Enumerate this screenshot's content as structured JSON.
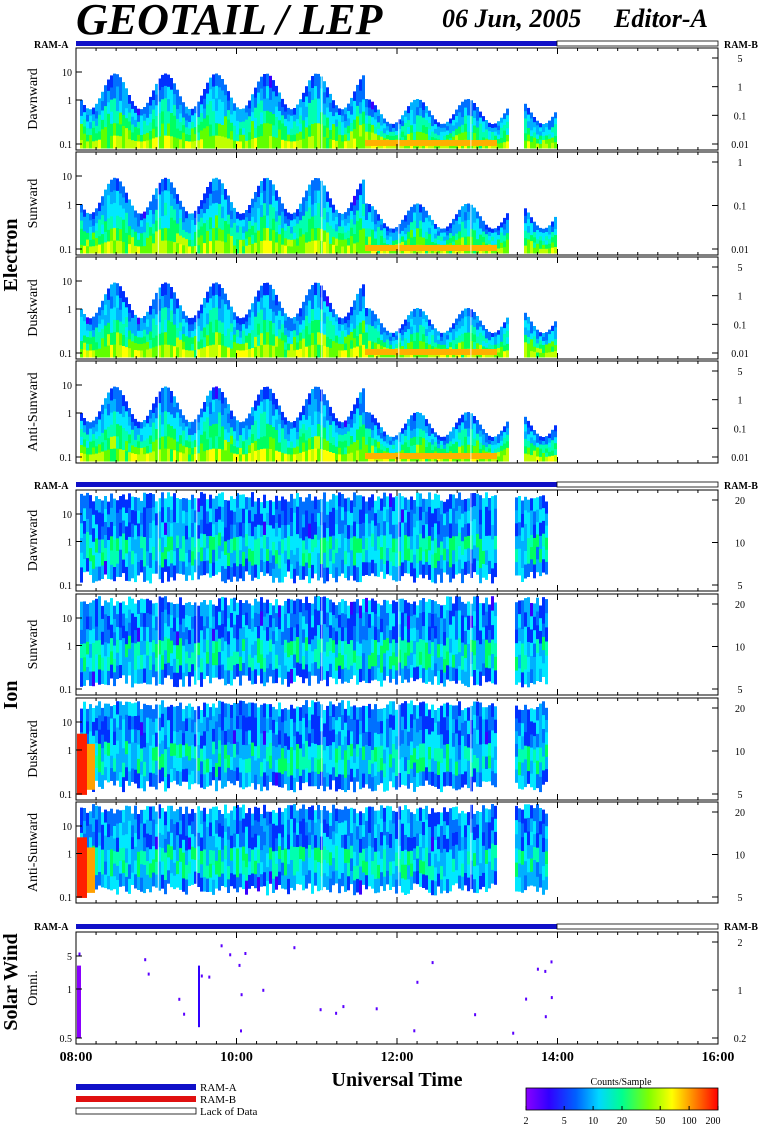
{
  "header": {
    "title": "GEOTAIL / LEP",
    "date": "06 Jun, 2005",
    "editor": "Editor-A"
  },
  "ram_labels": {
    "left": "RAM-A",
    "right": "RAM-B"
  },
  "groups": [
    {
      "id": "electron",
      "label": "Electron"
    },
    {
      "id": "ion",
      "label": "Ion"
    },
    {
      "id": "solar",
      "label": "Solar Wind"
    }
  ],
  "chart_data": {
    "type": "heatmap",
    "xlabel": "Universal Time",
    "xticks": [
      "08:00",
      "10:00",
      "12:00",
      "14:00",
      "16:00"
    ],
    "xlim": [
      "08:00",
      "16:00"
    ],
    "data_coverage": {
      "start": "08:00",
      "end": "14:00"
    },
    "panels": [
      {
        "group": "Electron",
        "label": "Dawnward",
        "left_ticks": [
          "10",
          "1",
          "0.1"
        ],
        "right_ticks": [
          "5",
          "1",
          "0.1",
          "0.01"
        ],
        "scale": "log"
      },
      {
        "group": "Electron",
        "label": "Sunward",
        "left_ticks": [
          "10",
          "1",
          "0.1"
        ],
        "right_ticks": [
          "1",
          "0.1",
          "0.01"
        ],
        "scale": "log"
      },
      {
        "group": "Electron",
        "label": "Duskward",
        "left_ticks": [
          "10",
          "1",
          "0.1"
        ],
        "right_ticks": [
          "5",
          "1",
          "0.1",
          "0.01"
        ],
        "scale": "log"
      },
      {
        "group": "Electron",
        "label": "Anti-Sunward",
        "left_ticks": [
          "10",
          "1",
          "0.1"
        ],
        "right_ticks": [
          "5",
          "1",
          "0.1",
          "0.01"
        ],
        "scale": "log"
      },
      {
        "group": "Ion",
        "label": "Dawnward",
        "left_ticks": [
          "10",
          "1",
          "0.1"
        ],
        "right_ticks": [
          "20",
          "10",
          "5"
        ],
        "scale": "log"
      },
      {
        "group": "Ion",
        "label": "Sunward",
        "left_ticks": [
          "10",
          "1",
          "0.1"
        ],
        "right_ticks": [
          "20",
          "10",
          "5"
        ],
        "scale": "log"
      },
      {
        "group": "Ion",
        "label": "Duskward",
        "left_ticks": [
          "10",
          "1",
          "0.1"
        ],
        "right_ticks": [
          "20",
          "10",
          "5"
        ],
        "scale": "log"
      },
      {
        "group": "Ion",
        "label": "Anti-Sunward",
        "left_ticks": [
          "10",
          "1",
          "0.1"
        ],
        "right_ticks": [
          "20",
          "10",
          "5"
        ],
        "scale": "log"
      },
      {
        "group": "Solar Wind",
        "label": "Omni.",
        "left_ticks": [
          "5",
          "1",
          "0.5"
        ],
        "right_ticks": [
          "2",
          "1",
          "0.2"
        ],
        "scale": "log"
      }
    ],
    "legend": [
      {
        "label": "RAM-A",
        "color": "#1010c8"
      },
      {
        "label": "RAM-B",
        "color": "#e01010"
      },
      {
        "label": "Lack of Data",
        "color": "#ffffff"
      }
    ],
    "colorbar": {
      "title": "Counts/Sample",
      "ticks": [
        "2",
        "5",
        "10",
        "20",
        "50",
        "100",
        "200"
      ],
      "scale": "log",
      "range": [
        2,
        200
      ]
    }
  }
}
